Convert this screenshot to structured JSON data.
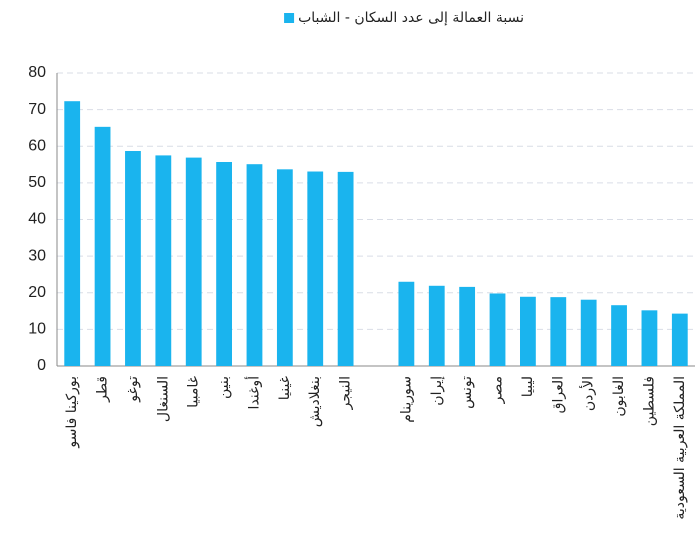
{
  "chart_data": {
    "type": "bar",
    "categories": [
      "بوركينا فاسو",
      "قطر",
      "توغو",
      "السنغال",
      "غامبيا",
      "بنين",
      "أوغندا",
      "غينيا",
      "بنغلاديش",
      "النيجر",
      null,
      "سورينام",
      "إيران",
      "تونس",
      "مصر",
      "ليبيا",
      "العراق",
      "الأردن",
      "الغابون",
      "فلسطين",
      "المملكة العربية السعودية"
    ],
    "series": [
      {
        "name": "نسبة العمالة إلى عدد السكان - الشباب",
        "color": "#1ab4ee",
        "values": [
          72.3,
          65.3,
          58.7,
          57.5,
          56.9,
          55.7,
          55.1,
          53.7,
          53.1,
          53.0,
          null,
          23.0,
          21.9,
          21.6,
          19.8,
          18.9,
          18.8,
          18.1,
          16.6,
          15.2,
          14.3
        ]
      }
    ],
    "ylim": [
      0,
      80
    ],
    "yticks": [
      0,
      10,
      20,
      30,
      40,
      50,
      60,
      70,
      80
    ],
    "grid": true,
    "legend": "top"
  }
}
